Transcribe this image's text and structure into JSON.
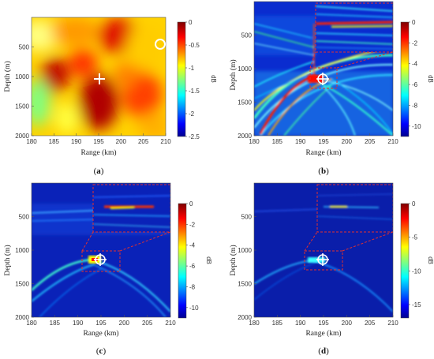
{
  "chart_data": [
    {
      "panel": "(a)",
      "type": "heatmap",
      "xlabel": "Range (km)",
      "ylabel": "Depth (m)",
      "colorbar_label": "dB",
      "xticks": [
        180,
        185,
        190,
        195,
        200,
        205,
        210
      ],
      "yticks": [
        500,
        1000,
        1500,
        2000
      ],
      "xlim": [
        180,
        210
      ],
      "ylim": [
        0,
        2000
      ],
      "clim": [
        -2.5,
        0
      ],
      "colorbar_ticks": [
        "0",
        "-0.5",
        "-1",
        "-1.5",
        "-2",
        "-2.5"
      ],
      "markers": [
        {
          "type": "cross",
          "range_km": 195,
          "depth_m": 1000
        },
        {
          "type": "circle",
          "range_km": 208,
          "depth_m": 400
        }
      ],
      "caption": "a"
    },
    {
      "panel": "(b)",
      "type": "heatmap",
      "xlabel": "Range (km)",
      "ylabel": "Depth (m)",
      "colorbar_label": "dB",
      "xticks": [
        180,
        185,
        190,
        195,
        200,
        205,
        210
      ],
      "yticks": [
        500,
        1000,
        1500,
        2000
      ],
      "xlim": [
        180,
        210
      ],
      "ylim": [
        0,
        2000
      ],
      "clim": [
        -11,
        0
      ],
      "colorbar_ticks": [
        "0",
        "-2",
        "-4",
        "-6",
        "-8",
        "-10"
      ],
      "markers": [
        {
          "type": "circle-cross",
          "range_km": 195,
          "depth_m": 1000
        }
      ],
      "zoom_box": {
        "range_km": [
          192,
          198
        ],
        "depth_m": [
          900,
          1150
        ]
      },
      "caption": "b"
    },
    {
      "panel": "(c)",
      "type": "heatmap",
      "xlabel": "Range (km)",
      "ylabel": "Depth (m)",
      "colorbar_label": "dB",
      "xticks": [
        180,
        185,
        190,
        195,
        200,
        205,
        210
      ],
      "yticks": [
        500,
        1000,
        1500,
        2000
      ],
      "xlim": [
        180,
        210
      ],
      "ylim": [
        0,
        2000
      ],
      "clim": [
        -11,
        0
      ],
      "colorbar_ticks": [
        "0",
        "-2",
        "-4",
        "-6",
        "-8",
        "-10"
      ],
      "markers": [
        {
          "type": "circle-cross",
          "range_km": 195,
          "depth_m": 1000
        }
      ],
      "zoom_box": {
        "range_km": [
          191,
          198
        ],
        "depth_m": [
          850,
          1150
        ]
      },
      "caption": "c"
    },
    {
      "panel": "(d)",
      "type": "heatmap",
      "xlabel": "Range (km)",
      "ylabel": "Depth (m)",
      "colorbar_label": "dB",
      "xticks": [
        180,
        185,
        190,
        195,
        200,
        205,
        210
      ],
      "yticks": [
        500,
        1000,
        1500,
        2000
      ],
      "xlim": [
        180,
        210
      ],
      "ylim": [
        0,
        2000
      ],
      "clim": [
        -17,
        0
      ],
      "colorbar_ticks": [
        "0",
        "-5",
        "-10",
        "-15"
      ],
      "markers": [
        {
          "type": "circle-cross",
          "range_km": 195,
          "depth_m": 1000
        }
      ],
      "zoom_box": {
        "range_km": [
          191,
          198
        ],
        "depth_m": [
          850,
          1150
        ]
      },
      "caption": "d"
    }
  ]
}
